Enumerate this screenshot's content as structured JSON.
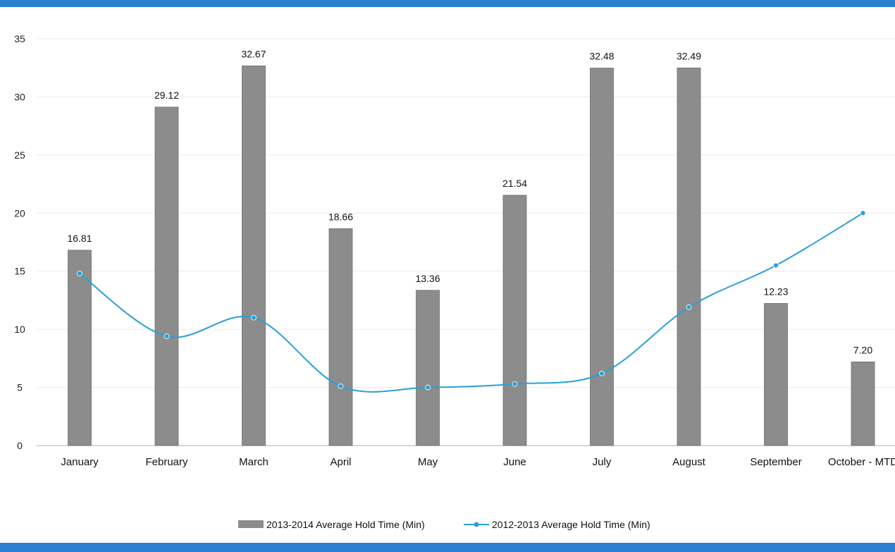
{
  "chart_data": {
    "type": "bar",
    "categories": [
      "January",
      "February",
      "March",
      "April",
      "May",
      "June",
      "July",
      "August",
      "September",
      "October - MTD"
    ],
    "series": [
      {
        "name": "2013-2014 Average Hold Time (Min)",
        "kind": "bar",
        "color": "#8c8c8c",
        "values": [
          16.81,
          29.12,
          32.67,
          18.66,
          13.36,
          21.54,
          32.48,
          32.49,
          12.23,
          7.2
        ],
        "labels": [
          "16.81",
          "29.12",
          "32.67",
          "18.66",
          "13.36",
          "21.54",
          "32.48",
          "32.49",
          "12.23",
          "7.20"
        ]
      },
      {
        "name": "2012-2013 Average Hold Time (Min)",
        "kind": "line",
        "color": "#2a9fd8",
        "values": [
          14.8,
          9.4,
          11.0,
          5.1,
          5.0,
          5.3,
          6.2,
          11.9,
          15.5,
          20.0
        ]
      }
    ],
    "ylim": [
      0,
      35
    ],
    "yticks": [
      "0",
      "5",
      "10",
      "15",
      "20",
      "25",
      "30",
      "35"
    ],
    "grid": true,
    "legend_position": "bottom"
  }
}
